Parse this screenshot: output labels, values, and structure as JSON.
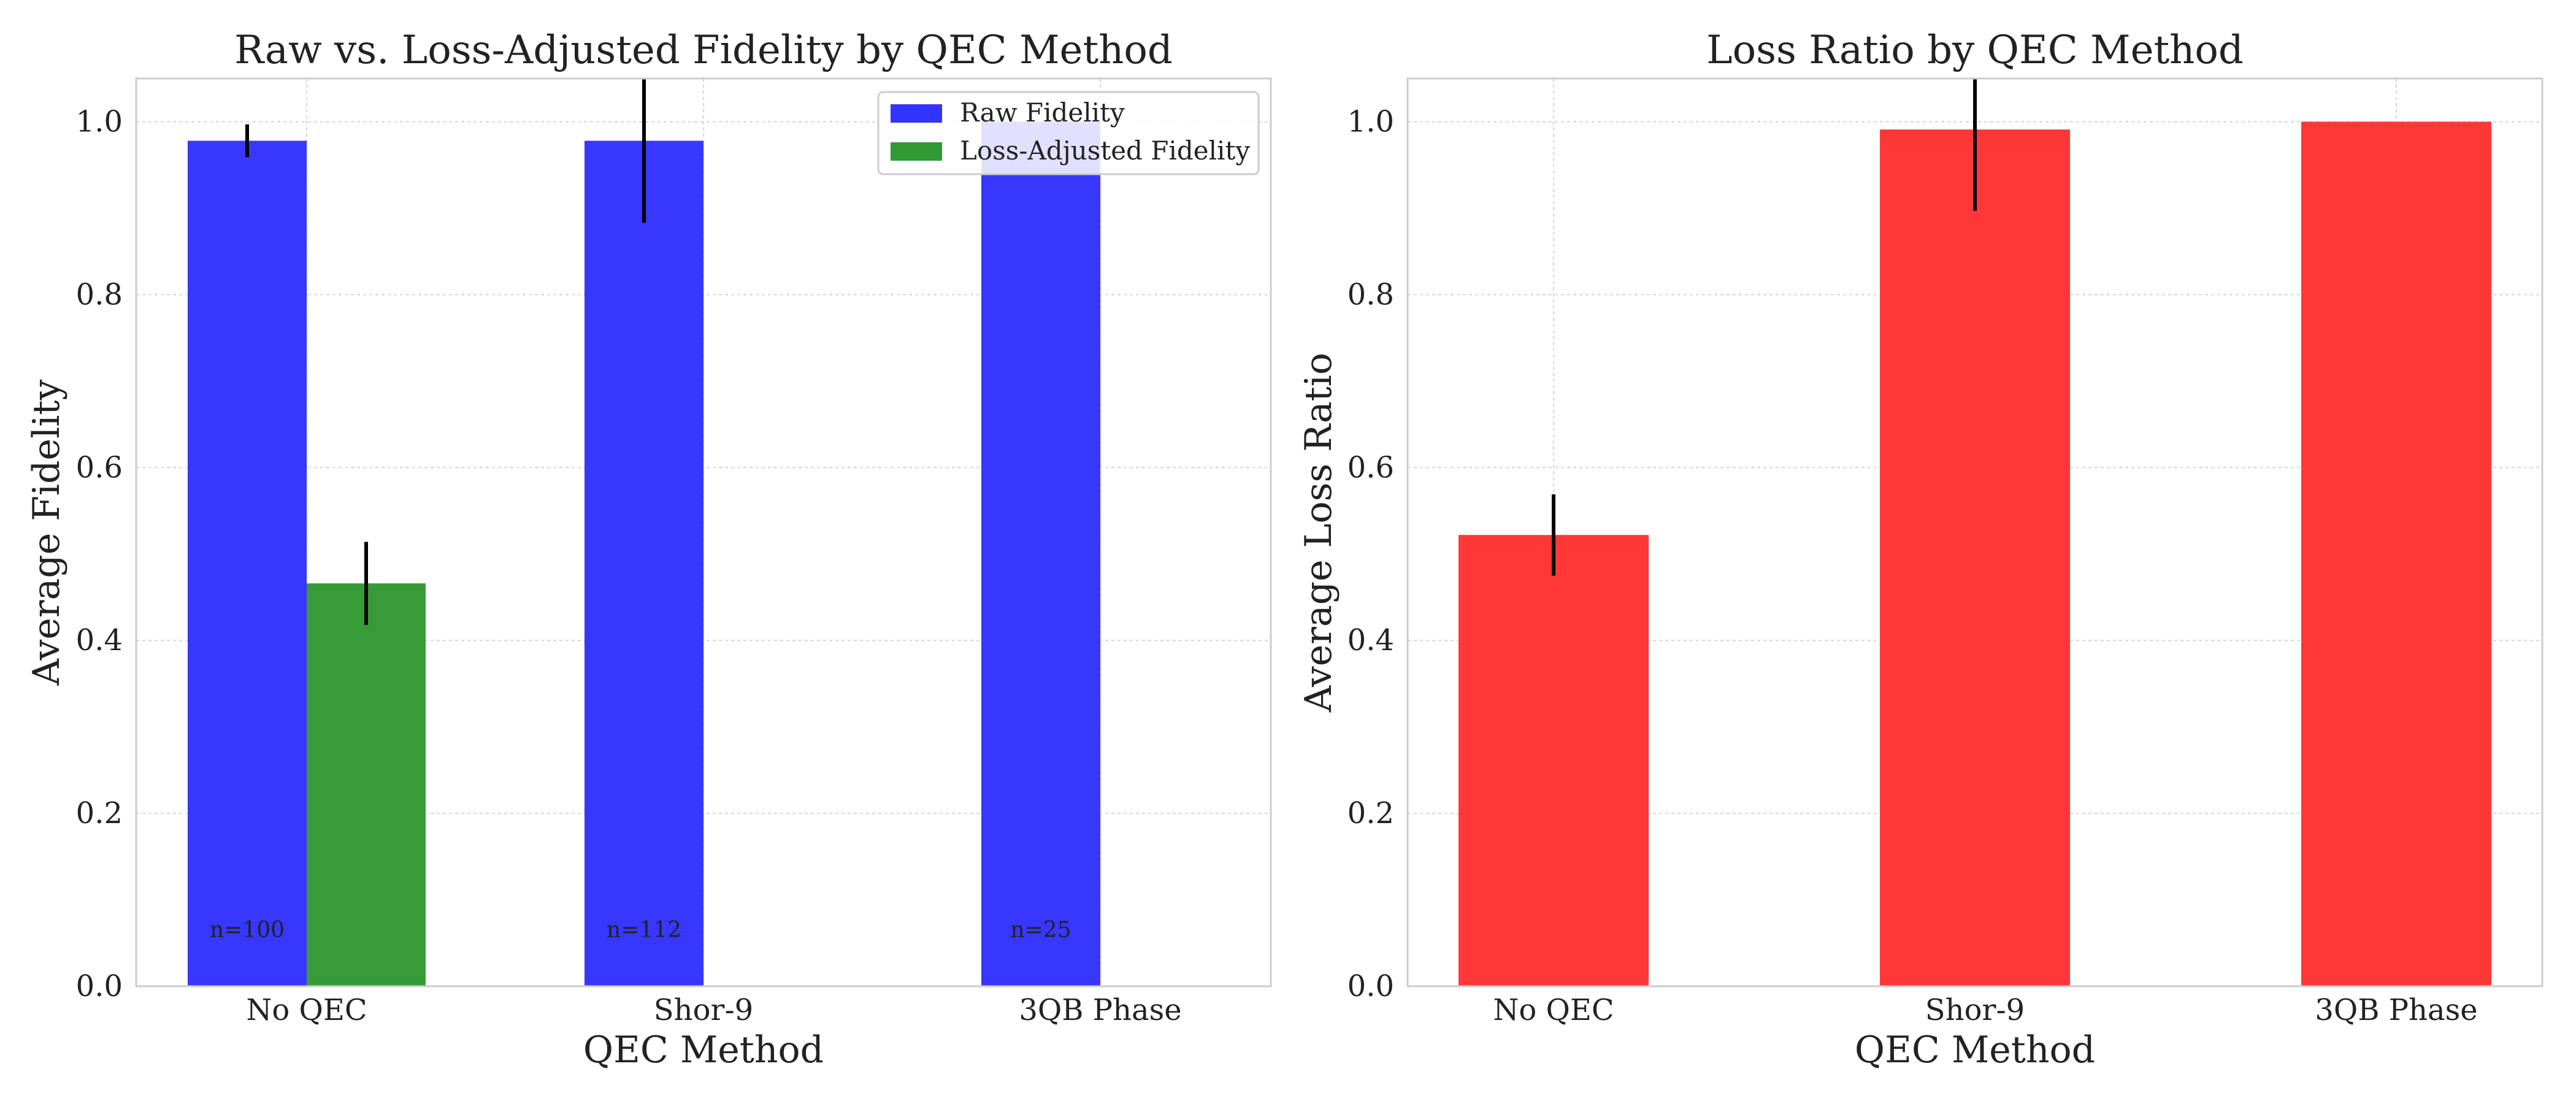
{
  "chart_data": [
    {
      "type": "bar",
      "title": "Raw vs. Loss-Adjusted Fidelity by QEC Method",
      "xlabel": "QEC Method",
      "ylabel": "Average Fidelity",
      "categories": [
        "No QEC",
        "Shor-9",
        "3QB Phase"
      ],
      "ylim": [
        0,
        1.05
      ],
      "yticks": [
        0.0,
        0.2,
        0.4,
        0.6,
        0.8,
        1.0
      ],
      "ytick_labels": [
        "0.0",
        "0.2",
        "0.4",
        "0.6",
        "0.8",
        "1.0"
      ],
      "grid": true,
      "legend_position": "top-right",
      "series": [
        {
          "name": "Raw Fidelity",
          "color": "#3333ff",
          "values": [
            0.978,
            0.978,
            1.0
          ],
          "errors": [
            0.019,
            0.095,
            null
          ]
        },
        {
          "name": "Loss-Adjusted Fidelity",
          "color": "#339933",
          "values": [
            0.466,
            null,
            null
          ],
          "errors": [
            0.048,
            null,
            null
          ]
        }
      ],
      "annotations": [
        "n=100",
        "n=112",
        "n=25"
      ]
    },
    {
      "type": "bar",
      "title": "Loss Ratio by QEC Method",
      "xlabel": "QEC Method",
      "ylabel": "Average Loss Ratio",
      "categories": [
        "No QEC",
        "Shor-9",
        "3QB Phase"
      ],
      "ylim": [
        0,
        1.05
      ],
      "yticks": [
        0.0,
        0.2,
        0.4,
        0.6,
        0.8,
        1.0
      ],
      "ytick_labels": [
        "0.0",
        "0.2",
        "0.4",
        "0.6",
        "0.8",
        "1.0"
      ],
      "grid": true,
      "series": [
        {
          "color": "#ff3333",
          "values": [
            0.522,
            0.991,
            1.0
          ],
          "errors": [
            0.047,
            0.094,
            null
          ]
        }
      ]
    }
  ]
}
